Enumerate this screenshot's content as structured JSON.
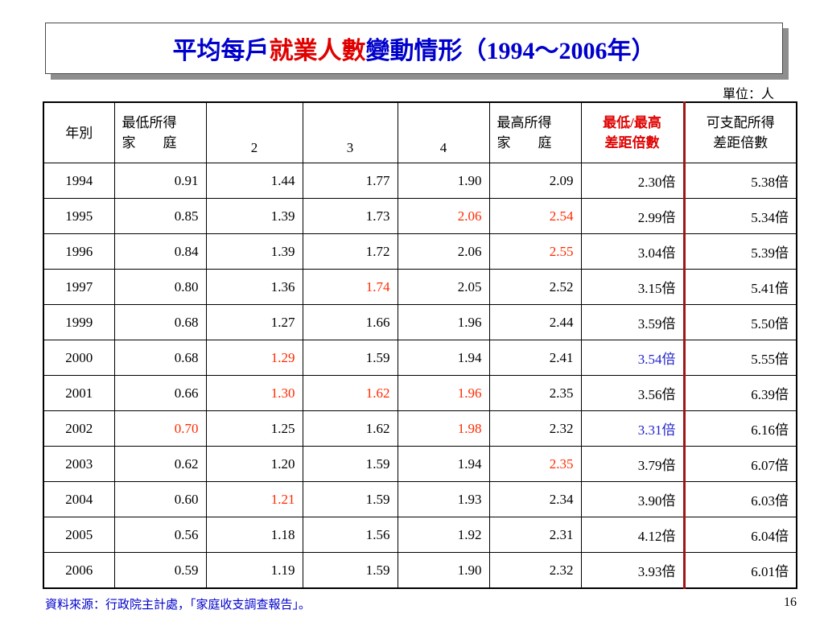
{
  "title": {
    "part1": "平均每戶",
    "part2": "就業人數",
    "part3": "變動情形（1994～2006年）"
  },
  "unit": "單位：人",
  "table": {
    "headers": [
      {
        "line1": "年別",
        "line2": ""
      },
      {
        "line1": "最低所得",
        "line2": "家　　庭"
      },
      {
        "line1": "",
        "line2": "2"
      },
      {
        "line1": "",
        "line2": "3"
      },
      {
        "line1": "",
        "line2": "4"
      },
      {
        "line1": "最高所得",
        "line2": "家　　庭"
      },
      {
        "line1": "最低/最高",
        "line2": "差距倍數"
      },
      {
        "line1": "可支配所得",
        "line2": "差距倍數"
      }
    ],
    "rows": [
      {
        "year": "1994",
        "lowest": "0.91",
        "q2": "1.44",
        "q3": "1.77",
        "q4": "1.90",
        "highest": "2.09",
        "ratio": "2.30倍",
        "disposable": "5.38倍"
      },
      {
        "year": "1995",
        "lowest": "0.85",
        "q2": "1.39",
        "q3": "1.73",
        "q4": "2.06",
        "highest": "2.54",
        "ratio": "2.99倍",
        "disposable": "5.34倍"
      },
      {
        "year": "1996",
        "lowest": "0.84",
        "q2": "1.39",
        "q3": "1.72",
        "q4": "2.06",
        "highest": "2.55",
        "ratio": "3.04倍",
        "disposable": "5.39倍"
      },
      {
        "year": "1997",
        "lowest": "0.80",
        "q2": "1.36",
        "q3": "1.74",
        "q4": "2.05",
        "highest": "2.52",
        "ratio": "3.15倍",
        "disposable": "5.41倍"
      },
      {
        "year": "1999",
        "lowest": "0.68",
        "q2": "1.27",
        "q3": "1.66",
        "q4": "1.96",
        "highest": "2.44",
        "ratio": "3.59倍",
        "disposable": "5.50倍"
      },
      {
        "year": "2000",
        "lowest": "0.68",
        "q2": "1.29",
        "q3": "1.59",
        "q4": "1.94",
        "highest": "2.41",
        "ratio": "3.54倍",
        "disposable": "5.55倍"
      },
      {
        "year": "2001",
        "lowest": "0.66",
        "q2": "1.30",
        "q3": "1.62",
        "q4": "1.96",
        "highest": "2.35",
        "ratio": "3.56倍",
        "disposable": "6.39倍"
      },
      {
        "year": "2002",
        "lowest": "0.70",
        "q2": "1.25",
        "q3": "1.62",
        "q4": "1.98",
        "highest": "2.32",
        "ratio": "3.31倍",
        "disposable": "6.16倍"
      },
      {
        "year": "2003",
        "lowest": "0.62",
        "q2": "1.20",
        "q3": "1.59",
        "q4": "1.94",
        "highest": "2.35",
        "ratio": "3.79倍",
        "disposable": "6.07倍"
      },
      {
        "year": "2004",
        "lowest": "0.60",
        "q2": "1.21",
        "q3": "1.59",
        "q4": "1.93",
        "highest": "2.34",
        "ratio": "3.90倍",
        "disposable": "6.03倍"
      },
      {
        "year": "2005",
        "lowest": "0.56",
        "q2": "1.18",
        "q3": "1.56",
        "q4": "1.92",
        "highest": "2.31",
        "ratio": "4.12倍",
        "disposable": "6.04倍"
      },
      {
        "year": "2006",
        "lowest": "0.59",
        "q2": "1.19",
        "q3": "1.59",
        "q4": "1.90",
        "highest": "2.32",
        "ratio": "3.93倍",
        "disposable": "6.01倍"
      }
    ]
  },
  "source": "資料來源：行政院主計處，「家庭收支調查報告」。",
  "page_number": "16",
  "colors": {
    "title_blue": "#0000cc",
    "title_red": "#e00000",
    "highlight_red": "#ff2a00",
    "highlight_blue": "#2222cc",
    "column_divider": "#a01515"
  }
}
